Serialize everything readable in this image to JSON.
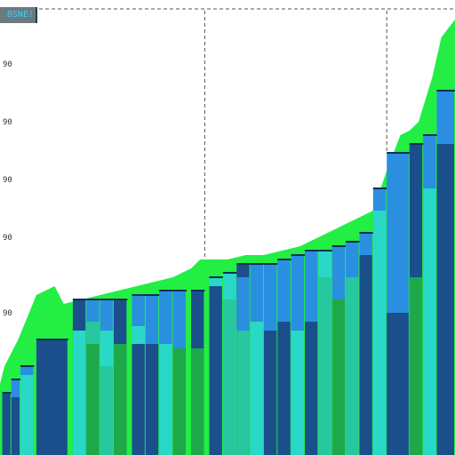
{
  "legend_tag": "BSNE!",
  "colors": {
    "area_green": "#22ee44",
    "bar_dark": "#1a4f8c",
    "bar_mid": "#2a8fe0",
    "bar_cyan": "#2ad8c8",
    "bar_green": "#1fa84a",
    "bar_teal": "#27c7a0",
    "guide": "#555555"
  },
  "chart_data": {
    "type": "area",
    "y_tick_labels": [
      "90",
      "90",
      "90",
      "90",
      "90"
    ],
    "ylim": [
      0,
      100
    ],
    "xlim": [
      0,
      100
    ],
    "area_series": {
      "x": [
        0,
        1,
        4,
        8,
        12,
        14,
        18,
        22,
        26,
        30,
        34,
        38,
        42,
        44,
        46,
        50,
        54,
        58,
        62,
        66,
        70,
        74,
        78,
        82,
        85,
        88,
        90,
        92,
        95,
        97,
        100
      ],
      "y": [
        16,
        20,
        26,
        36,
        38,
        34,
        35,
        36,
        37,
        38,
        39,
        40,
        42,
        44,
        44,
        44,
        45,
        45,
        46,
        47,
        49,
        51,
        53,
        55,
        64,
        72,
        73,
        75,
        85,
        94,
        98
      ]
    },
    "bars": [
      {
        "x": 0.5,
        "w": 2,
        "top": 14,
        "tiers": [
          [
            "bar_dark",
            14
          ]
        ]
      },
      {
        "x": 2.5,
        "w": 2,
        "top": 17,
        "tiers": [
          [
            "bar_mid",
            17
          ],
          [
            "bar_dark",
            13
          ]
        ]
      },
      {
        "x": 4.5,
        "w": 3,
        "top": 20,
        "tiers": [
          [
            "bar_mid",
            20
          ],
          [
            "bar_cyan",
            18
          ]
        ]
      },
      {
        "x": 8,
        "w": 7,
        "top": 26,
        "tiers": [
          [
            "bar_dark",
            26
          ]
        ]
      },
      {
        "x": 16,
        "w": 3,
        "top": 35,
        "tiers": [
          [
            "bar_dark",
            35
          ],
          [
            "bar_cyan",
            28
          ]
        ]
      },
      {
        "x": 19,
        "w": 3,
        "top": 35,
        "tiers": [
          [
            "bar_mid",
            35
          ],
          [
            "bar_teal",
            30
          ],
          [
            "bar_green",
            25
          ]
        ]
      },
      {
        "x": 22,
        "w": 3,
        "top": 35,
        "tiers": [
          [
            "bar_mid",
            35
          ],
          [
            "bar_cyan",
            28
          ],
          [
            "bar_teal",
            20
          ]
        ]
      },
      {
        "x": 25,
        "w": 3,
        "top": 35,
        "tiers": [
          [
            "bar_dark",
            35
          ],
          [
            "bar_green",
            25
          ]
        ]
      },
      {
        "x": 29,
        "w": 3,
        "top": 36,
        "tiers": [
          [
            "bar_mid",
            36
          ],
          [
            "bar_cyan",
            29
          ],
          [
            "bar_dark",
            25
          ]
        ]
      },
      {
        "x": 32,
        "w": 3,
        "top": 36,
        "tiers": [
          [
            "bar_mid",
            36
          ],
          [
            "bar_dark",
            25
          ]
        ]
      },
      {
        "x": 35,
        "w": 3,
        "top": 37,
        "tiers": [
          [
            "bar_mid",
            37
          ],
          [
            "bar_cyan",
            25
          ]
        ]
      },
      {
        "x": 38,
        "w": 3,
        "top": 37,
        "tiers": [
          [
            "bar_mid",
            37
          ],
          [
            "bar_green",
            24
          ]
        ]
      },
      {
        "x": 42,
        "w": 3,
        "top": 37,
        "tiers": [
          [
            "bar_dark",
            37
          ],
          [
            "bar_green",
            24
          ]
        ]
      },
      {
        "x": 46,
        "w": 3,
        "top": 40,
        "tiers": [
          [
            "bar_cyan",
            40
          ],
          [
            "bar_dark",
            38
          ]
        ]
      },
      {
        "x": 49,
        "w": 3,
        "top": 41,
        "tiers": [
          [
            "bar_cyan",
            41
          ],
          [
            "bar_teal",
            35
          ]
        ]
      },
      {
        "x": 52,
        "w": 3,
        "top": 43,
        "tiers": [
          [
            "bar_dark",
            43
          ],
          [
            "bar_mid",
            40
          ],
          [
            "bar_teal",
            28
          ]
        ]
      },
      {
        "x": 55,
        "w": 3,
        "top": 43,
        "tiers": [
          [
            "bar_mid",
            43
          ],
          [
            "bar_cyan",
            30
          ]
        ]
      },
      {
        "x": 58,
        "w": 3,
        "top": 43,
        "tiers": [
          [
            "bar_mid",
            43
          ],
          [
            "bar_dark",
            28
          ]
        ]
      },
      {
        "x": 61,
        "w": 3,
        "top": 44,
        "tiers": [
          [
            "bar_mid",
            44
          ],
          [
            "bar_dark",
            30
          ]
        ]
      },
      {
        "x": 64,
        "w": 3,
        "top": 45,
        "tiers": [
          [
            "bar_mid",
            45
          ],
          [
            "bar_cyan",
            28
          ]
        ]
      },
      {
        "x": 67,
        "w": 3,
        "top": 46,
        "tiers": [
          [
            "bar_mid",
            46
          ],
          [
            "bar_dark",
            30
          ]
        ]
      },
      {
        "x": 70,
        "w": 3,
        "top": 46,
        "tiers": [
          [
            "bar_cyan",
            46
          ],
          [
            "bar_teal",
            40
          ]
        ]
      },
      {
        "x": 73,
        "w": 3,
        "top": 47,
        "tiers": [
          [
            "bar_mid",
            47
          ],
          [
            "bar_green",
            35
          ]
        ]
      },
      {
        "x": 76,
        "w": 3,
        "top": 48,
        "tiers": [
          [
            "bar_mid",
            48
          ],
          [
            "bar_teal",
            40
          ]
        ]
      },
      {
        "x": 79,
        "w": 3,
        "top": 50,
        "tiers": [
          [
            "bar_mid",
            50
          ],
          [
            "bar_dark",
            45
          ]
        ]
      },
      {
        "x": 82,
        "w": 3,
        "top": 60,
        "tiers": [
          [
            "bar_mid",
            60
          ],
          [
            "bar_cyan",
            55
          ]
        ]
      },
      {
        "x": 85,
        "w": 5,
        "top": 68,
        "tiers": [
          [
            "bar_mid",
            68
          ],
          [
            "bar_dark",
            32
          ]
        ]
      },
      {
        "x": 90,
        "w": 3,
        "top": 70,
        "tiers": [
          [
            "bar_dark",
            70
          ],
          [
            "bar_green",
            40
          ]
        ]
      },
      {
        "x": 93,
        "w": 3,
        "top": 72,
        "tiers": [
          [
            "bar_mid",
            72
          ],
          [
            "bar_cyan",
            60
          ]
        ]
      },
      {
        "x": 96,
        "w": 4,
        "top": 82,
        "tiers": [
          [
            "bar_mid",
            82
          ],
          [
            "bar_dark",
            70
          ]
        ]
      }
    ],
    "vertical_guides_x": [
      45,
      85
    ],
    "top_guide": true,
    "grid": false
  }
}
